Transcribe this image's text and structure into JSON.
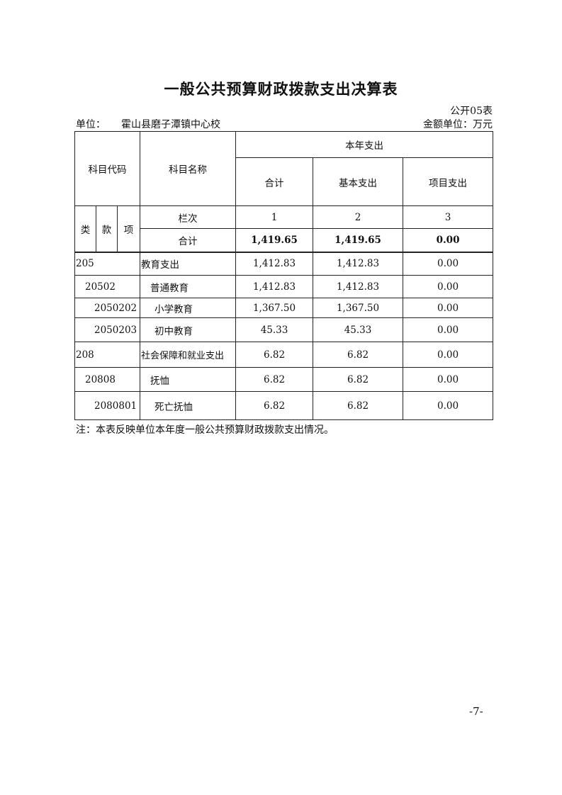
{
  "title": "一般公共预算财政拨款支出决算表",
  "form_no": "公开05表",
  "unit_label": "单位：",
  "unit_name": "霍山县磨子潭镇中心校",
  "amount_unit": "金额单位：万元",
  "headers": {
    "code": "科目代码",
    "name": "科目名称",
    "current_year": "本年支出",
    "total": "合计",
    "basic": "基本支出",
    "project": "项目支出",
    "class": "类",
    "section": "款",
    "item": "项",
    "column_no": "栏次",
    "col1": "1",
    "col2": "2",
    "col3": "3"
  },
  "total_row": {
    "name": "合计",
    "total": "1,419.65",
    "basic": "1,419.65",
    "project": "0.00"
  },
  "rows": [
    {
      "code": "205",
      "name": "教育支出",
      "total": "1,412.83",
      "basic": "1,412.83",
      "project": "0.00"
    },
    {
      "code": "20502",
      "name": "普通教育",
      "total": "1,412.83",
      "basic": "1,412.83",
      "project": "0.00"
    },
    {
      "code": "2050202",
      "name": "小学教育",
      "total": "1,367.50",
      "basic": "1,367.50",
      "project": "0.00"
    },
    {
      "code": "2050203",
      "name": "初中教育",
      "total": "45.33",
      "basic": "45.33",
      "project": "0.00"
    },
    {
      "code": "208",
      "name": "社会保障和就业支出",
      "total": "6.82",
      "basic": "6.82",
      "project": "0.00"
    },
    {
      "code": "20808",
      "name": "抚恤",
      "total": "6.82",
      "basic": "6.82",
      "project": "0.00"
    },
    {
      "code": "2080801",
      "name": "死亡抚恤",
      "total": "6.82",
      "basic": "6.82",
      "project": "0.00"
    }
  ],
  "note": "注：本表反映单位本年度一般公共预算财政拨款支出情况。",
  "page_number": "-7-"
}
